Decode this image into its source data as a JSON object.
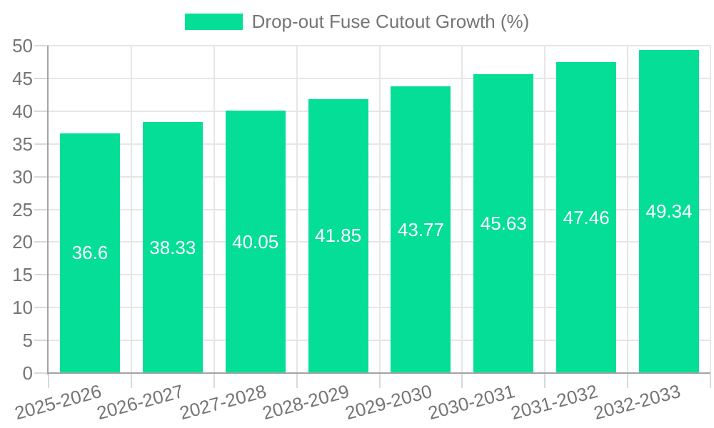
{
  "legend": {
    "label": "Drop-out Fuse Cutout Growth (%)"
  },
  "colors": {
    "bar": "#05DE96",
    "grid": "#e6e6e6",
    "tick": "#d9d9d9",
    "axis_line": "#a3a3a3",
    "axis_text": "#757575",
    "value_label": "#ffffff"
  },
  "chart_data": {
    "type": "bar",
    "title": "Drop-out Fuse Cutout Growth (%)",
    "categories": [
      "2025-2026",
      "2026-2027",
      "2027-2028",
      "2028-2029",
      "2029-2030",
      "2030-2031",
      "2031-2032",
      "2032-2033"
    ],
    "values": [
      36.6,
      38.33,
      40.05,
      41.85,
      43.77,
      45.63,
      47.46,
      49.34
    ],
    "xlabel": "",
    "ylabel": "",
    "ylim": [
      0,
      50
    ],
    "ytick_step": 5,
    "grid": true,
    "legend_position": "top",
    "value_labels": "inside-middle",
    "x_label_rotation_deg": -15
  }
}
